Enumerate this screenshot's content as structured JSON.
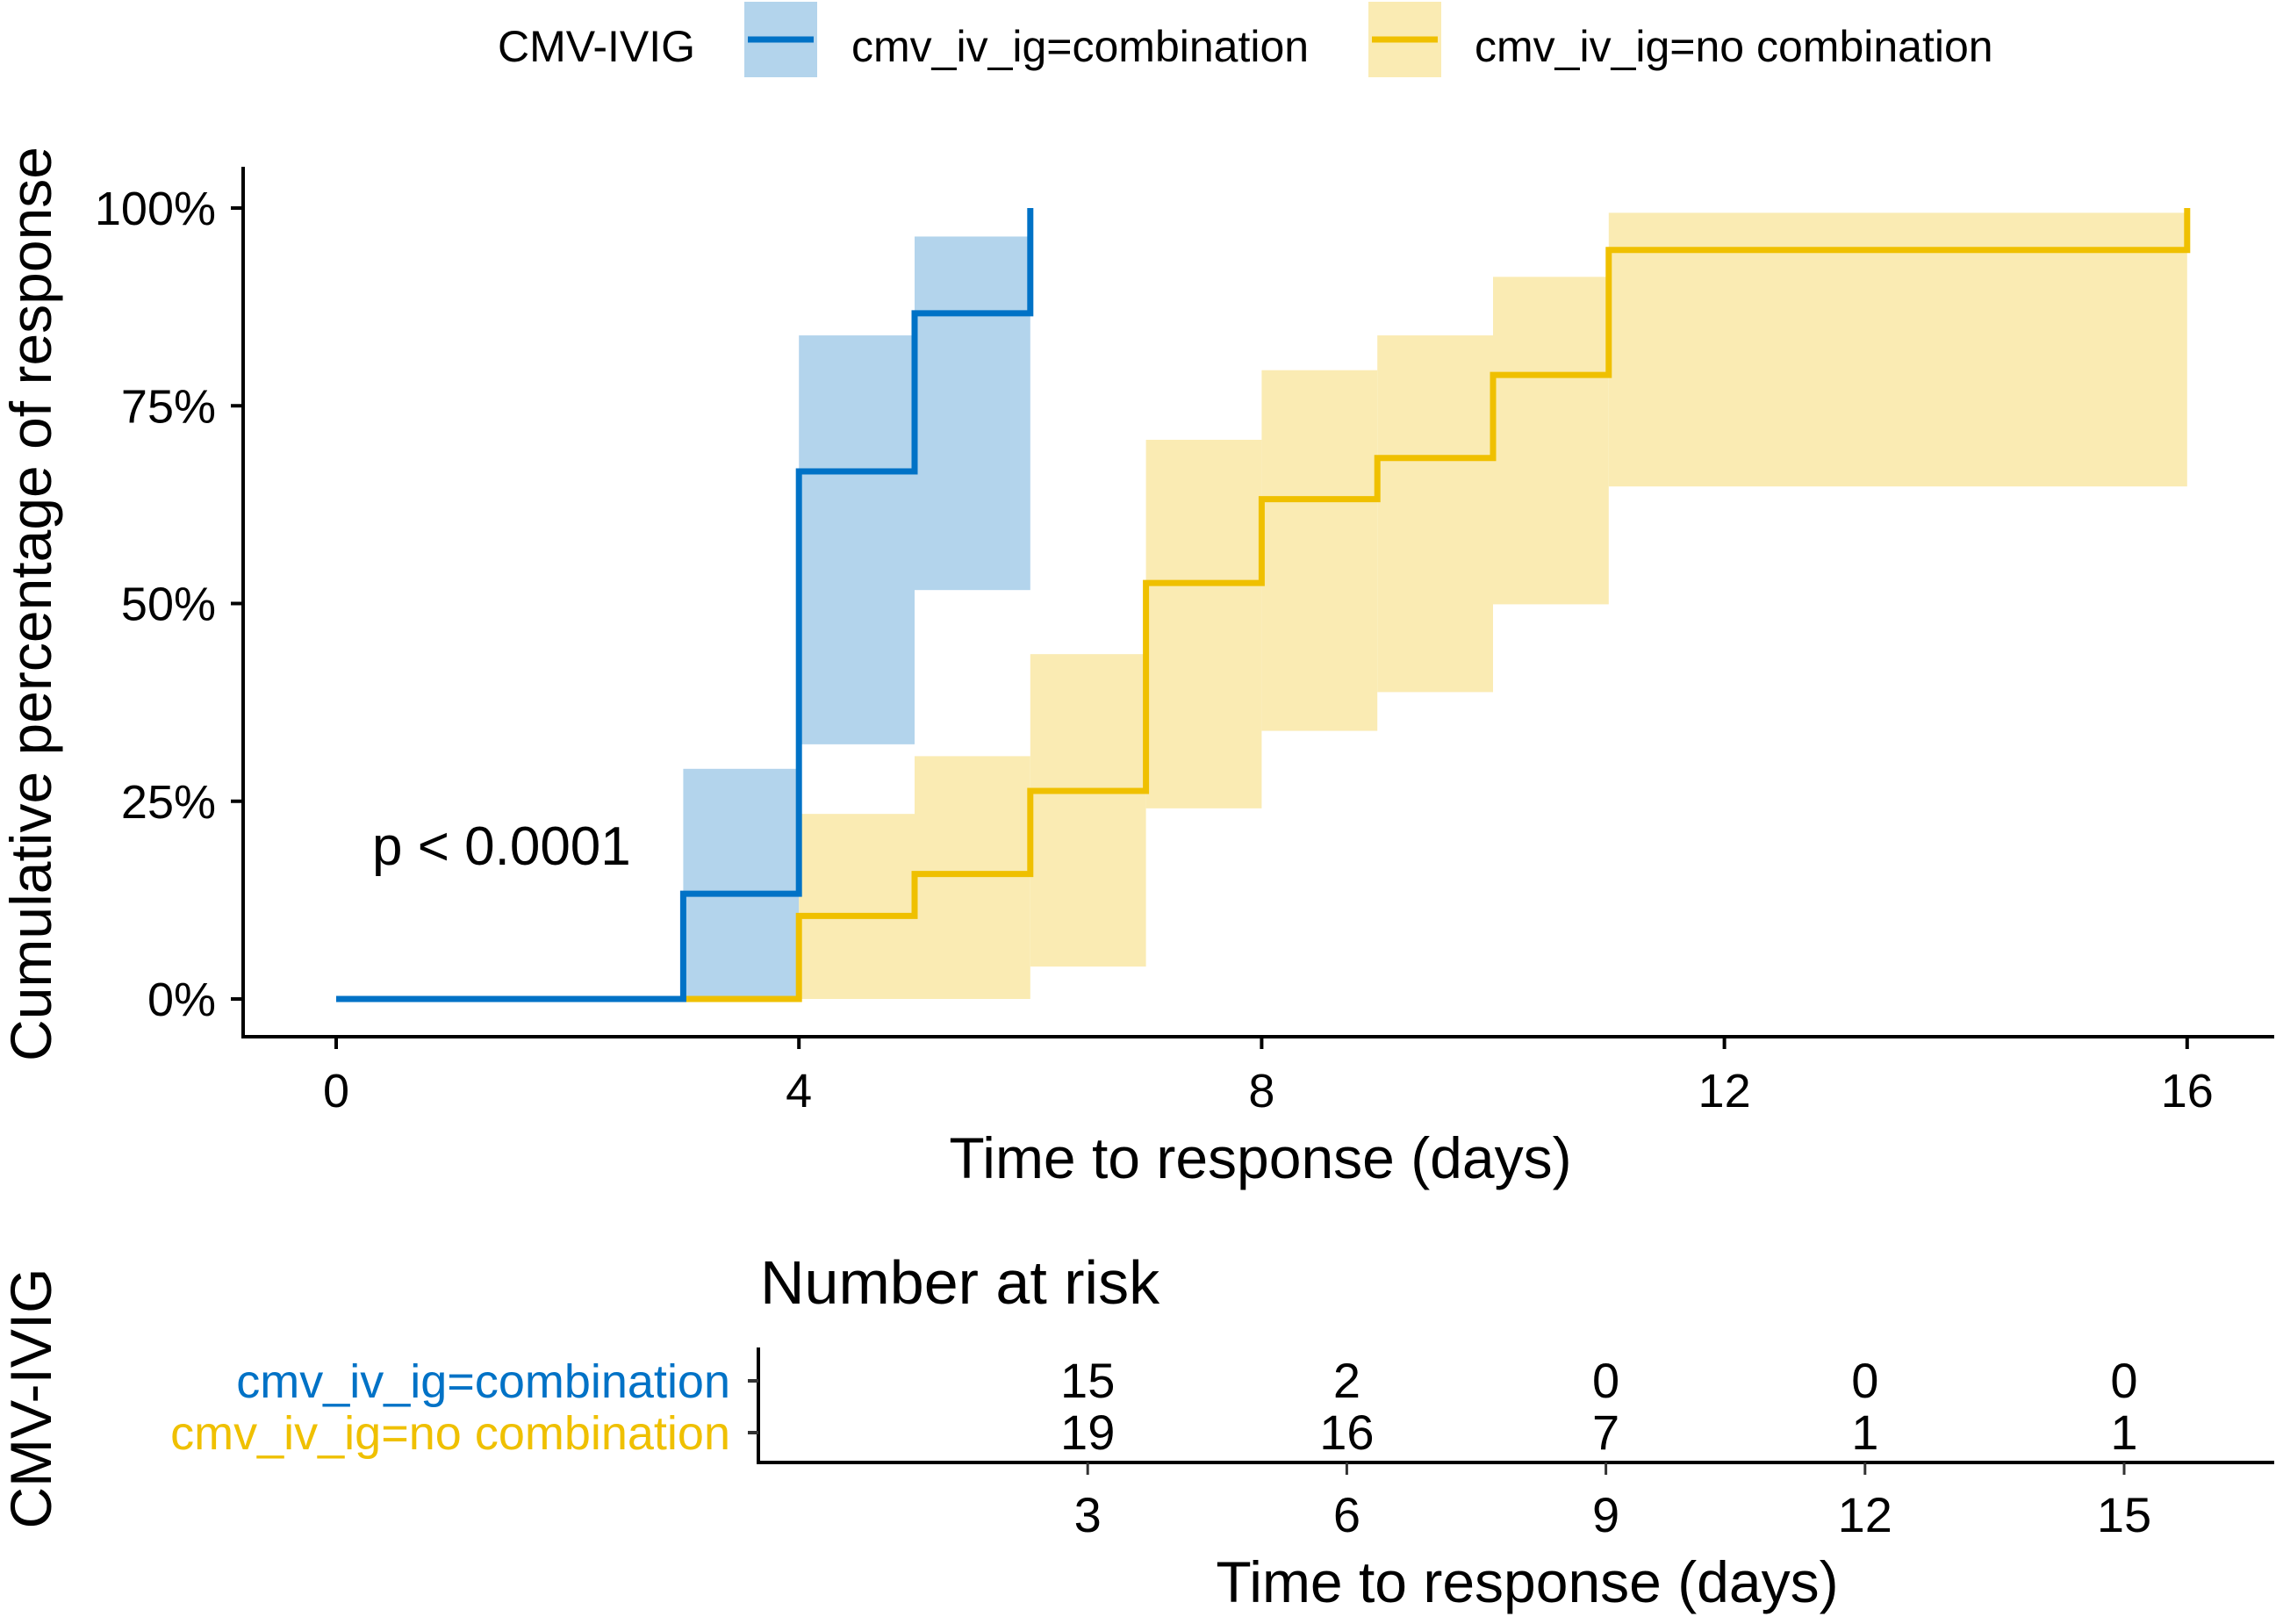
{
  "chart_data": {
    "type": "line",
    "subtype": "kaplan-meier-cumulative-incidence",
    "xlabel": "Time to response (days)",
    "ylabel": "Cumulative percentage of response",
    "xlim": [
      0,
      16.6
    ],
    "ylim": [
      0,
      100
    ],
    "x_ticks": [
      0,
      4,
      8,
      12,
      16
    ],
    "y_ticks": [
      0,
      25,
      50,
      75,
      100
    ],
    "y_tick_labels": [
      "0%",
      "25%",
      "50%",
      "75%",
      "100%"
    ],
    "grid": false,
    "legend": {
      "title": "CMV-IVIG",
      "position": "top",
      "entries": [
        "cmv_iv_ig=combination",
        "cmv_iv_ig=no combination"
      ]
    },
    "annotation": "p < 0.0001",
    "series": [
      {
        "name": "cmv_iv_ig=combination",
        "color": "#0072C6",
        "ci_color": "#B3D4EC",
        "steps": [
          {
            "time": 0,
            "value": 0,
            "ci_low": 0,
            "ci_high": 0
          },
          {
            "time": 3,
            "value": 13.3,
            "ci_low": 0,
            "ci_high": 29.1
          },
          {
            "time": 4,
            "value": 66.7,
            "ci_low": 32.2,
            "ci_high": 83.9
          },
          {
            "time": 5,
            "value": 86.7,
            "ci_low": 51.7,
            "ci_high": 96.4
          },
          {
            "time": 6,
            "value": 100,
            "ci_low": null,
            "ci_high": null
          }
        ]
      },
      {
        "name": "cmv_iv_ig=no combination",
        "color": "#EFC000",
        "ci_color": "#FAEBB3",
        "steps": [
          {
            "time": 0,
            "value": 0,
            "ci_low": 0,
            "ci_high": 0
          },
          {
            "time": 4,
            "value": 10.5,
            "ci_low": 0,
            "ci_high": 23.4
          },
          {
            "time": 5,
            "value": 15.8,
            "ci_low": 0,
            "ci_high": 30.7
          },
          {
            "time": 6,
            "value": 26.3,
            "ci_low": 4.1,
            "ci_high": 43.6
          },
          {
            "time": 7,
            "value": 52.6,
            "ci_low": 24.1,
            "ci_high": 70.7
          },
          {
            "time": 8,
            "value": 63.2,
            "ci_low": 33.9,
            "ci_high": 79.5
          },
          {
            "time": 9,
            "value": 68.4,
            "ci_low": 38.8,
            "ci_high": 83.9
          },
          {
            "time": 10,
            "value": 78.9,
            "ci_low": 49.9,
            "ci_high": 91.3
          },
          {
            "time": 11,
            "value": 94.7,
            "ci_low": 64.8,
            "ci_high": 99.4
          },
          {
            "time": 16,
            "value": 100,
            "ci_low": null,
            "ci_high": null
          }
        ]
      }
    ],
    "risk_table": {
      "title": "Number at risk",
      "ylabel": "CMV-IVIG",
      "xlabel": "Time to response (days)",
      "times": [
        3,
        6,
        9,
        12,
        15
      ],
      "rows": [
        {
          "label": "cmv_iv_ig=combination",
          "color": "#0072C6",
          "values": [
            15,
            2,
            0,
            0,
            0
          ]
        },
        {
          "label": "cmv_iv_ig=no combination",
          "color": "#EFC000",
          "values": [
            19,
            16,
            7,
            1,
            1
          ]
        }
      ]
    }
  }
}
